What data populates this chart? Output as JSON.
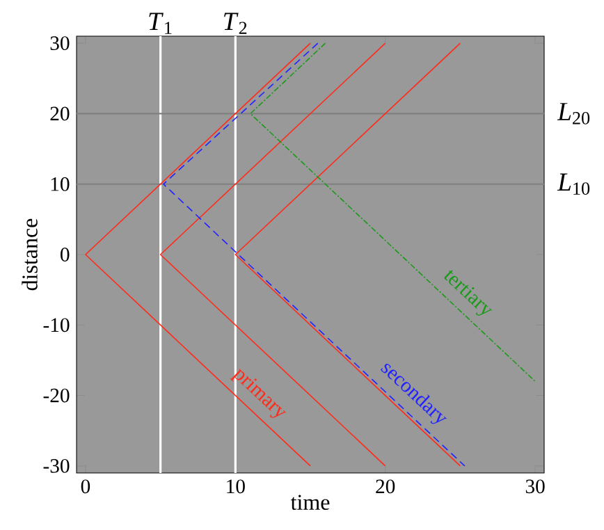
{
  "chart_data": {
    "type": "line",
    "xlabel": "time",
    "ylabel": "distance",
    "xlim": [
      -0.6,
      30.6
    ],
    "ylim": [
      -31,
      31
    ],
    "xticks": [
      0,
      10,
      20,
      30
    ],
    "yticks": [
      -30,
      -20,
      -10,
      0,
      10,
      20,
      30
    ],
    "series": [
      {
        "name": "primary",
        "color": "#ff2a1a",
        "x": [
          15,
          0,
          15
        ],
        "values": [
          30,
          0,
          -30
        ]
      },
      {
        "color": "#ff2a1a",
        "x": [
          20,
          5,
          20
        ],
        "values": [
          30,
          0,
          -30
        ]
      },
      {
        "color": "#ff2a1a",
        "x": [
          25,
          10,
          25
        ],
        "values": [
          30,
          0,
          -30
        ]
      },
      {
        "name": "secondary",
        "color": "#2222ff",
        "line_style": "dashed",
        "x": [
          15.5,
          5.2,
          10.2,
          25.3
        ],
        "values": [
          30,
          10,
          0,
          -30
        ]
      },
      {
        "name": "tertiary",
        "color": "#1a9a1a",
        "line_style": "dashdot",
        "x": [
          16,
          11,
          30
        ],
        "values": [
          30,
          20,
          -18
        ]
      }
    ],
    "ref_lines": [
      {
        "axis": "x",
        "value": 5,
        "label": "*T*$_{1}$",
        "color": "#ffffff"
      },
      {
        "axis": "x",
        "value": 10,
        "label": "*T*$_{2}$",
        "color": "#ffffff"
      },
      {
        "axis": "y",
        "value": 20,
        "label": "*L*$_{20}$",
        "color": "#808080"
      },
      {
        "axis": "y",
        "value": 10,
        "label": "*L*$_{10}$",
        "color": "#808080"
      }
    ]
  }
}
